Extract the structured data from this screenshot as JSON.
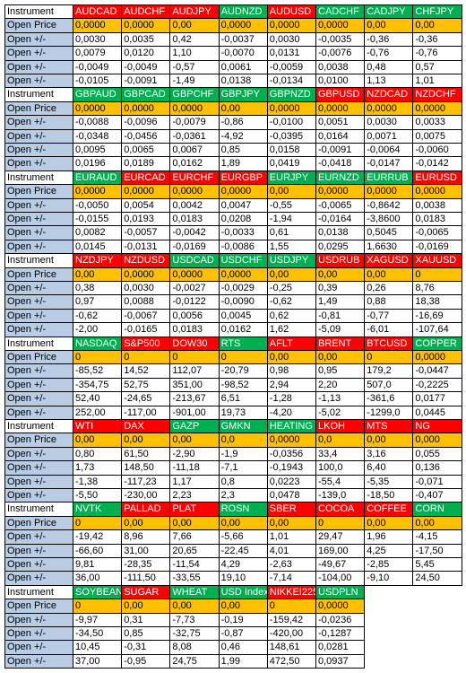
{
  "blocks": [
    {
      "header": {
        "label": "Instrument",
        "cells": [
          {
            "name": "AUDCAD",
            "color": "#ff0000"
          },
          {
            "name": "AUDCHF",
            "color": "#ff0000"
          },
          {
            "name": "AUDJPY",
            "color": "#ff0000"
          },
          {
            "name": "AUDNZD",
            "color": "#00b050"
          },
          {
            "name": "AUDUSD",
            "color": "#ff0000"
          },
          {
            "name": "CADCHF",
            "color": "#00b050"
          },
          {
            "name": "CADJPY",
            "color": "#00b050"
          },
          {
            "name": "CHFJPY",
            "color": "#00b050"
          }
        ]
      },
      "rows": [
        {
          "label": "Open Price",
          "cells": [
            "0,0000",
            "0,0000",
            "0,00",
            "0,0000",
            "0,0000",
            "0,0000",
            "0,00",
            "0,00"
          ]
        },
        {
          "label": "Open +/-",
          "cells": [
            "0,0030",
            "0,0035",
            "0,42",
            "-0,0037",
            "0,0030",
            "-0,0035",
            "-0,36",
            "-0,36"
          ]
        },
        {
          "label": "Open +/-",
          "cells": [
            "0,0079",
            "0,0120",
            "1,10",
            "-0,0070",
            "0,0131",
            "-0,0076",
            "-0,76",
            "-0,76"
          ]
        },
        {
          "label": "Open +/-",
          "cells": [
            "-0,0049",
            "-0,0049",
            "-0,57",
            "0,0061",
            "-0,0059",
            "0,0038",
            "0,48",
            "0,57"
          ]
        },
        {
          "label": "Open +/-",
          "cells": [
            "-0,0105",
            "-0,0091",
            "-1,49",
            "0,0138",
            "-0,0134",
            "0,0100",
            "1,13",
            "1,01"
          ]
        }
      ]
    },
    {
      "header": {
        "label": "Instrument",
        "cells": [
          {
            "name": "GBPAUD",
            "color": "#00b050"
          },
          {
            "name": "GBPCAD",
            "color": "#00b050"
          },
          {
            "name": "GBPCHF",
            "color": "#00b050"
          },
          {
            "name": "GBPJPY",
            "color": "#00b050"
          },
          {
            "name": "GBPNZD",
            "color": "#00b050"
          },
          {
            "name": "GBPUSD",
            "color": "#ff0000"
          },
          {
            "name": "NZDCAD",
            "color": "#ff0000"
          },
          {
            "name": "NZDCHF",
            "color": "#ff0000"
          }
        ]
      },
      "rows": [
        {
          "label": "Open Price",
          "cells": [
            "0,0000",
            "0,0000",
            "0,0000",
            "0,00",
            "0,0000",
            "0,0000",
            "0,0000",
            "0,0000"
          ]
        },
        {
          "label": "Open +/-",
          "cells": [
            "-0,0088",
            "-0,0096",
            "-0,0079",
            "-0,86",
            "-0,0100",
            "0,0051",
            "0,0030",
            "0,0033"
          ]
        },
        {
          "label": "Open +/-",
          "cells": [
            "-0,0348",
            "-0,0456",
            "-0,0361",
            "-4,92",
            "-0,0395",
            "0,0164",
            "0,0071",
            "0,0075"
          ]
        },
        {
          "label": "Open +/-",
          "cells": [
            "0,0095",
            "0,0065",
            "0,0067",
            "0,85",
            "0,0158",
            "-0,0091",
            "-0,0064",
            "-0,0060"
          ]
        },
        {
          "label": "Open +/-",
          "cells": [
            "0,0196",
            "0,0189",
            "0,0162",
            "1,89",
            "0,0419",
            "-0,0418",
            "-0,0147",
            "-0,0142"
          ]
        }
      ]
    },
    {
      "header": {
        "label": "Instrument",
        "cells": [
          {
            "name": "EURAUD",
            "color": "#00b050"
          },
          {
            "name": "EURCAD",
            "color": "#ff0000"
          },
          {
            "name": "EURCHF",
            "color": "#ff0000"
          },
          {
            "name": "EURGBP",
            "color": "#ff0000"
          },
          {
            "name": "EURJPY",
            "color": "#00b050"
          },
          {
            "name": "EURNZD",
            "color": "#00b050"
          },
          {
            "name": "EURRUB",
            "color": "#00b050"
          },
          {
            "name": "EURUSD",
            "color": "#ff0000"
          }
        ]
      },
      "rows": [
        {
          "label": "Open Price",
          "cells": [
            "0,0000",
            "0,0000",
            "0,0000",
            "0,0000",
            "0,00",
            "0,0000",
            "0,0000",
            "0,0000"
          ]
        },
        {
          "label": "Open +/-",
          "cells": [
            "-0,0050",
            "0,0054",
            "0,0042",
            "0,0047",
            "-0,55",
            "-0,0065",
            "-0,8642",
            "0,0038"
          ]
        },
        {
          "label": "Open +/-",
          "cells": [
            "-0,0155",
            "0,0193",
            "0,0183",
            "0,0208",
            "-1,94",
            "-0,0164",
            "-3,8600",
            "0,0183"
          ]
        },
        {
          "label": "Open +/-",
          "cells": [
            "0,0082",
            "-0,0057",
            "-0,0042",
            "-0,0033",
            "0,61",
            "0,0138",
            "0,5045",
            "-0,0065"
          ]
        },
        {
          "label": "Open +/-",
          "cells": [
            "0,0145",
            "-0,0131",
            "-0,0169",
            "-0,0086",
            "1,55",
            "0,0295",
            "1,6630",
            "-0,0169"
          ]
        }
      ]
    },
    {
      "header": {
        "label": "Instrument",
        "cells": [
          {
            "name": "NZDJPY",
            "color": "#ff0000"
          },
          {
            "name": "NZDUSD",
            "color": "#ff0000"
          },
          {
            "name": "USDCAD",
            "color": "#00b050"
          },
          {
            "name": "USDCHF",
            "color": "#00b050"
          },
          {
            "name": "USDJPY",
            "color": "#00b050"
          },
          {
            "name": "USDRUB",
            "color": "#ff0000"
          },
          {
            "name": "XAGUSD",
            "color": "#ff0000"
          },
          {
            "name": "XAUUSD",
            "color": "#ff0000"
          }
        ]
      },
      "rows": [
        {
          "label": "Open Price",
          "cells": [
            "0,00",
            "0,0000",
            "0,0000",
            "0,0000",
            "0,00",
            "0,00",
            "0,00",
            "0"
          ]
        },
        {
          "label": "Open +/-",
          "cells": [
            "0,38",
            "0,0030",
            "-0,0027",
            "-0,0029",
            "-0,25",
            "0,39",
            "0,26",
            "8,76"
          ]
        },
        {
          "label": "Open +/-",
          "cells": [
            "0,97",
            "0,0088",
            "-0,0122",
            "-0,0090",
            "-0,62",
            "1,49",
            "0,88",
            "18,38"
          ]
        },
        {
          "label": "Open +/-",
          "cells": [
            "-0,62",
            "-0,0067",
            "0,0056",
            "0,0045",
            "0,62",
            "-0,81",
            "-0,77",
            "-16,69"
          ]
        },
        {
          "label": "Open +/-",
          "cells": [
            "-2,00",
            "-0,0165",
            "0,0183",
            "0,0162",
            "1,62",
            "-5,09",
            "-6,01",
            "-107,64"
          ]
        }
      ]
    },
    {
      "header": {
        "label": "Instrument",
        "cells": [
          {
            "name": "NASDAQ",
            "color": "#00b050"
          },
          {
            "name": "S&P500",
            "color": "#ff0000"
          },
          {
            "name": "DOW30",
            "color": "#ff0000"
          },
          {
            "name": "RTS",
            "color": "#00b050"
          },
          {
            "name": "AFLT",
            "color": "#ff0000"
          },
          {
            "name": "BRENT",
            "color": "#ff0000"
          },
          {
            "name": "BTCUSD",
            "color": "#ff0000"
          },
          {
            "name": "COPPER",
            "color": "#00b050"
          }
        ]
      },
      "rows": [
        {
          "label": "Open Price",
          "cells": [
            "0",
            "0",
            "0",
            "0",
            "0,00",
            "0,00",
            "0",
            "0,0000"
          ]
        },
        {
          "label": "Open +/-",
          "cells": [
            "-85,52",
            "14,52",
            "112,07",
            "-20,79",
            "0,98",
            "0,95",
            "179,2",
            "-0,0447"
          ]
        },
        {
          "label": "Open +/-",
          "cells": [
            "-354,75",
            "52,75",
            "351,00",
            "-98,52",
            "2,94",
            "2,20",
            "507,0",
            "-0,2225"
          ]
        },
        {
          "label": "Open +/-",
          "cells": [
            "52,40",
            "-24,65",
            "-213,67",
            "6,51",
            "-1,28",
            "-1,13",
            "-361,6",
            "0,0177"
          ]
        },
        {
          "label": "Open +/-",
          "cells": [
            "252,00",
            "-117,00",
            "-901,00",
            "19,73",
            "-4,20",
            "-5,02",
            "-1299,0",
            "0,0445"
          ]
        }
      ]
    },
    {
      "header": {
        "label": "Instrument",
        "cells": [
          {
            "name": "WTI",
            "color": "#ff0000"
          },
          {
            "name": "DAX",
            "color": "#ff0000"
          },
          {
            "name": "GAZP",
            "color": "#00b050"
          },
          {
            "name": "GMKN",
            "color": "#00b050"
          },
          {
            "name": "HEATING",
            "color": "#00b050"
          },
          {
            "name": "LKOH",
            "color": "#ff0000"
          },
          {
            "name": "MTS",
            "color": "#ff0000"
          },
          {
            "name": "NG",
            "color": "#ff0000"
          }
        ]
      },
      "rows": [
        {
          "label": "Open Price",
          "cells": [
            "0,00",
            "0,00",
            "0,00",
            "0,0",
            "0,0000",
            "0,0",
            "0,00",
            "0,000"
          ]
        },
        {
          "label": "Open +/-",
          "cells": [
            "0,80",
            "61,50",
            "-2,90",
            "-1,9",
            "-0,0356",
            "33,4",
            "3,16",
            "0,055"
          ]
        },
        {
          "label": "Open +/-",
          "cells": [
            "1,73",
            "148,50",
            "-11,18",
            "-7,1",
            "-0,1943",
            "100,0",
            "6,40",
            "0,136"
          ]
        },
        {
          "label": "Open +/-",
          "cells": [
            "-1,38",
            "-117,23",
            "1,17",
            "0,8",
            "0,0223",
            "-55,4",
            "-5,35",
            "-0,071"
          ]
        },
        {
          "label": "Open +/-",
          "cells": [
            "-5,50",
            "-230,00",
            "2,23",
            "2,3",
            "0,0478",
            "-139,0",
            "-18,50",
            "-0,407"
          ]
        }
      ]
    },
    {
      "header": {
        "label": "Instrument",
        "cells": [
          {
            "name": "NVTK",
            "color": "#00b050"
          },
          {
            "name": "PALLAD",
            "color": "#ff0000"
          },
          {
            "name": "PLAT",
            "color": "#ff0000"
          },
          {
            "name": "ROSN",
            "color": "#00b050"
          },
          {
            "name": "SBER",
            "color": "#ff0000"
          },
          {
            "name": "COCOA",
            "color": "#ff0000"
          },
          {
            "name": "COFFEE",
            "color": "#ff0000"
          },
          {
            "name": "CORN",
            "color": "#00b050"
          }
        ]
      },
      "rows": [
        {
          "label": "Open Price",
          "cells": [
            "0",
            "0,00",
            "0,00",
            "0,00",
            "0,00",
            "0",
            "0,00",
            "0,00"
          ]
        },
        {
          "label": "Open +/-",
          "cells": [
            "-19,42",
            "8,96",
            "7,66",
            "-5,66",
            "1,01",
            "29,47",
            "1,96",
            "-4,15"
          ]
        },
        {
          "label": "Open +/-",
          "cells": [
            "-66,60",
            "31,00",
            "20,65",
            "-22,45",
            "4,01",
            "169,00",
            "4,25",
            "-17,50"
          ]
        },
        {
          "label": "Open +/-",
          "cells": [
            "9,81",
            "-28,35",
            "-11,54",
            "4,29",
            "-2,63",
            "-49,67",
            "-2,85",
            "5,45"
          ]
        },
        {
          "label": "Open +/-",
          "cells": [
            "36,00",
            "-111,50",
            "-33,55",
            "19,10",
            "-7,14",
            "-104,00",
            "-9,10",
            "24,50"
          ]
        }
      ]
    },
    {
      "header": {
        "label": "Instrument",
        "cells": [
          {
            "name": "SOYBEAN",
            "color": "#00b050"
          },
          {
            "name": "SUGAR",
            "color": "#ff0000"
          },
          {
            "name": "WHEAT",
            "color": "#00b050"
          },
          {
            "name": "USD Index",
            "color": "#00b050"
          },
          {
            "name": "NIKKEI225",
            "color": "#ff0000"
          },
          {
            "name": "USDPLN",
            "color": "#00b050"
          }
        ]
      },
      "rows": [
        {
          "label": "Open Price",
          "cells": [
            "0",
            "0,00",
            "0,00",
            "0,00",
            "0",
            "0,0000"
          ]
        },
        {
          "label": "Open +/-",
          "cells": [
            "-9,97",
            "0,31",
            "-7,73",
            "-0,19",
            "-159,42",
            "-0,0236"
          ]
        },
        {
          "label": "Open +/-",
          "cells": [
            "-34,50",
            "0,85",
            "-32,75",
            "-0,87",
            "-420,00",
            "-0,1287"
          ]
        },
        {
          "label": "Open +/-",
          "cells": [
            "10,45",
            "-0,31",
            "8,08",
            "0,46",
            "148,61",
            "0,0281"
          ]
        },
        {
          "label": "Open +/-",
          "cells": [
            "37,00",
            "-0,95",
            "24,75",
            "1,99",
            "472,50",
            "0,0937"
          ]
        }
      ]
    }
  ]
}
